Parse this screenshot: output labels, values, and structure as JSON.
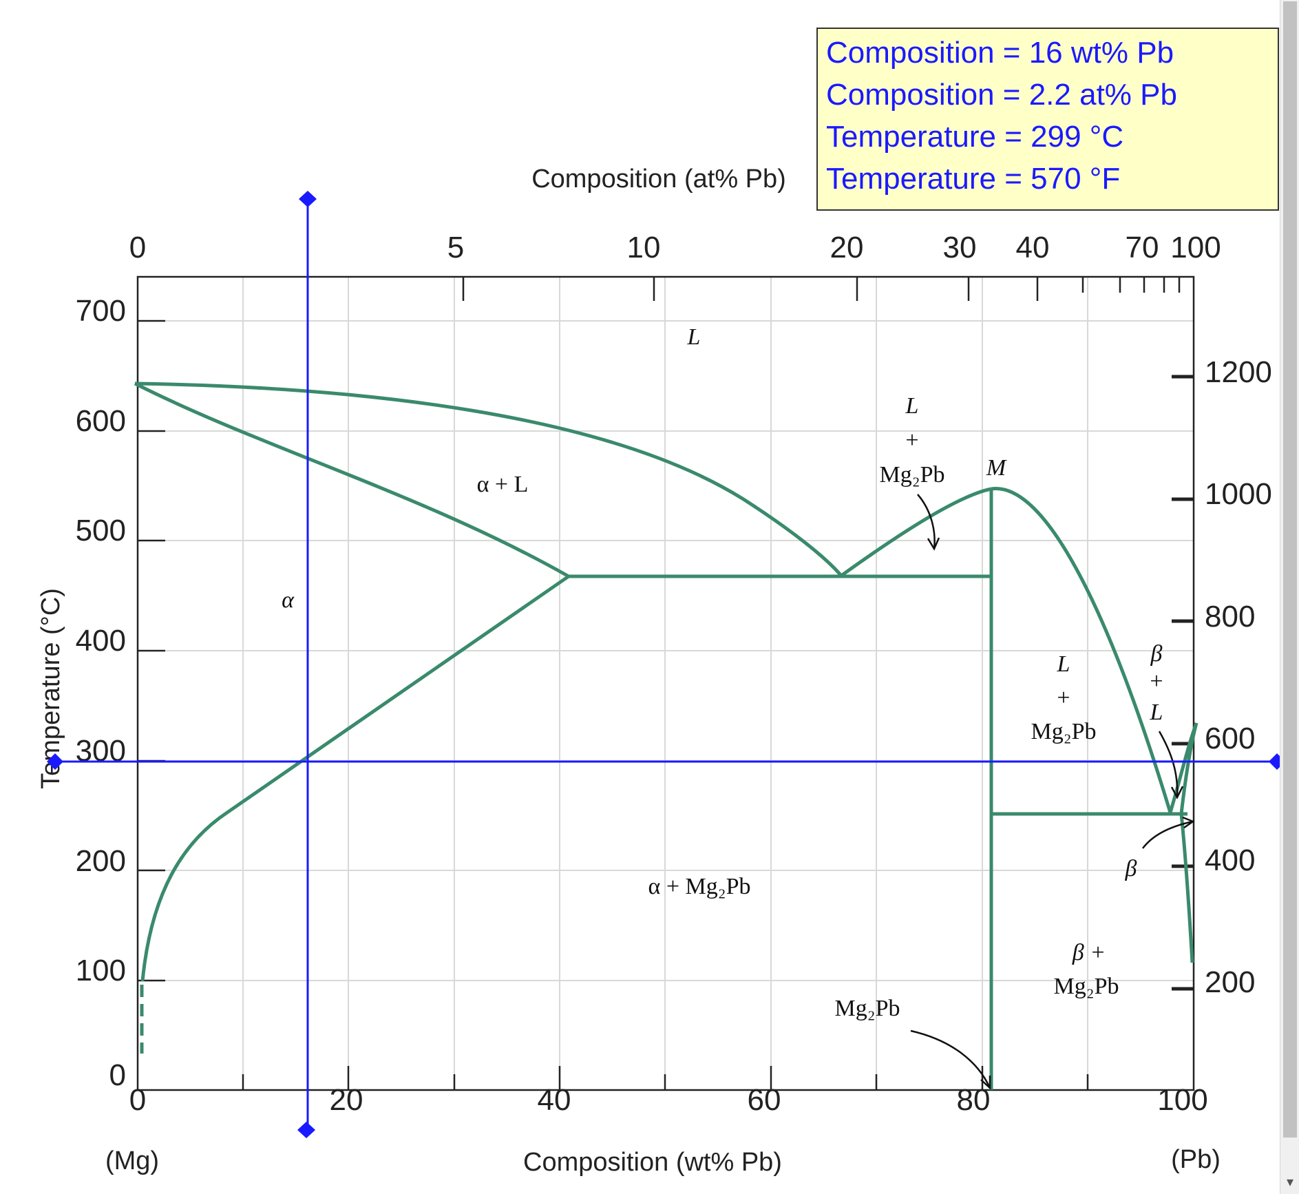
{
  "readout": {
    "comp_wt": "Composition = 16 wt% Pb",
    "comp_at": "Composition = 2.2 at% Pb",
    "temp_c": "Temperature = 299 °C",
    "temp_f": "Temperature = 570 °F"
  },
  "axes": {
    "top_title": "Composition (at% Pb)",
    "bottom_title": "Composition (wt% Pb)",
    "left_title": "Temperature (°C)",
    "left_end": "(Mg)",
    "right_end": "(Pb)",
    "top_ticks": [
      "0",
      "5",
      "10",
      "20",
      "30",
      "40",
      "70",
      "100"
    ],
    "bottom_ticks": [
      "0",
      "20",
      "40",
      "60",
      "80",
      "100"
    ],
    "left_ticks": [
      "0",
      "100",
      "200",
      "300",
      "400",
      "500",
      "600",
      "700"
    ],
    "right_ticks": [
      "200",
      "400",
      "600",
      "800",
      "1000",
      "1200"
    ]
  },
  "labels": {
    "liquid": "L",
    "alpha_liquid": "α + L",
    "alpha": "α",
    "alpha_mg2pb": "α + Mg₂Pb",
    "l_mg2pb_top_l": "L",
    "l_mg2pb_top_plus": "+",
    "l_mg2pb_top_cmp": "Mg₂Pb",
    "m_point": "M",
    "l_mg2pb_right_l": "L",
    "l_mg2pb_right_plus": "+",
    "l_mg2pb_right_cmp": "Mg₂Pb",
    "beta_l_b": "β",
    "beta_l_plus": "+",
    "beta_l_l": "L",
    "beta": "β",
    "beta_mg2pb_top": "β +",
    "beta_mg2pb_cmp": "Mg₂Pb",
    "mg2pb": "Mg₂Pb"
  },
  "cursor": {
    "composition_wt_pct": 16,
    "composition_at_pct": 2.2,
    "temperature_c": 299,
    "temperature_f": 570
  },
  "colors": {
    "phase_line": "#3a8a6c",
    "cursor": "#1a1aff",
    "readout_bg": "#ffffc8"
  }
}
